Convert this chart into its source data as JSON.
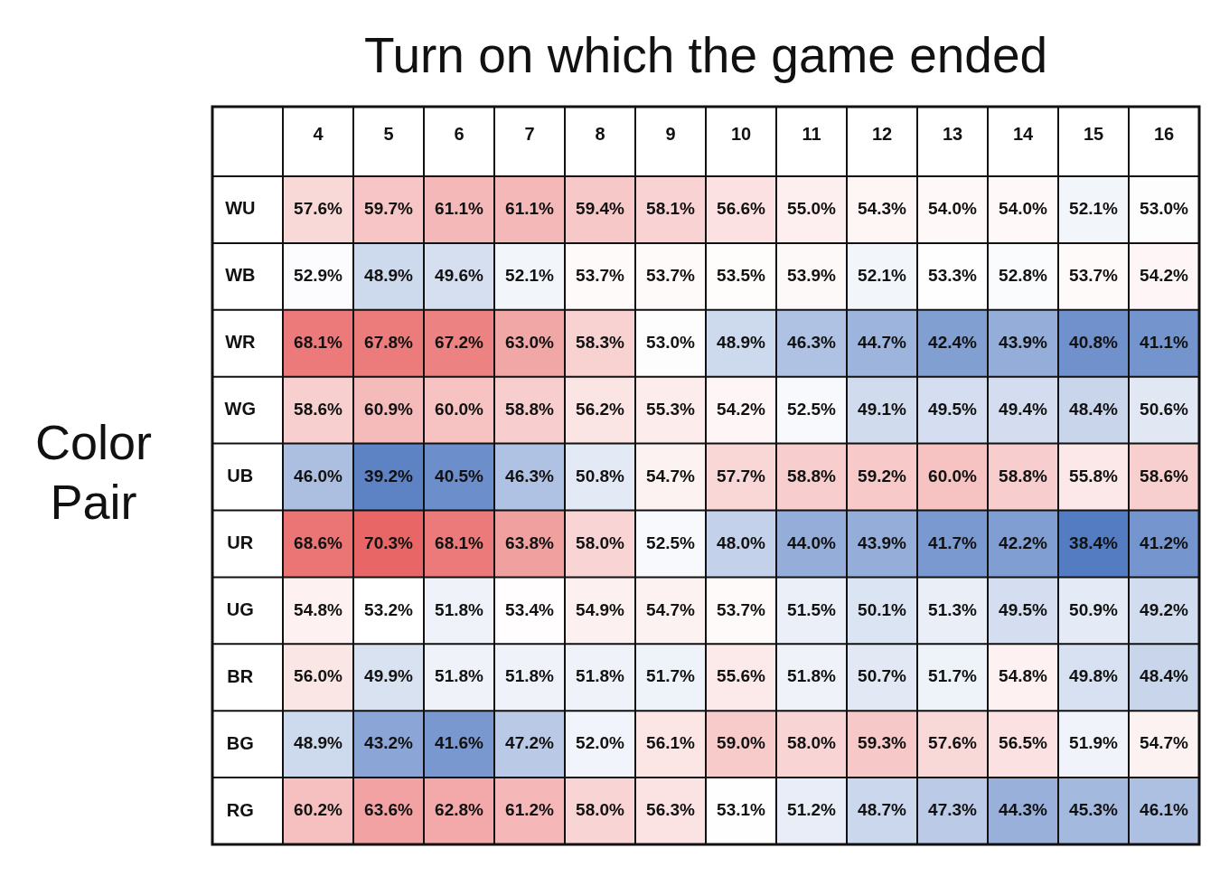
{
  "chart_data": {
    "type": "heatmap",
    "xlabel": "Turn on which the game ended",
    "ylabel": "Color Pair",
    "categories": [
      "4",
      "5",
      "6",
      "7",
      "8",
      "9",
      "10",
      "11",
      "12",
      "13",
      "14",
      "15",
      "16"
    ],
    "y_categories": [
      "WU",
      "WB",
      "WR",
      "WG",
      "UB",
      "UR",
      "UG",
      "BR",
      "BG",
      "RG"
    ],
    "cells": [
      [
        57.6,
        59.7,
        61.1,
        61.1,
        59.4,
        58.1,
        56.6,
        55.0,
        54.3,
        54.0,
        54.0,
        52.1,
        53.0
      ],
      [
        52.9,
        48.9,
        49.6,
        52.1,
        53.7,
        53.7,
        53.5,
        53.9,
        52.1,
        53.3,
        52.8,
        53.7,
        54.2
      ],
      [
        68.1,
        67.8,
        67.2,
        63.0,
        58.3,
        53.0,
        48.9,
        46.3,
        44.7,
        42.4,
        43.9,
        40.8,
        41.1
      ],
      [
        58.6,
        60.9,
        60.0,
        58.8,
        56.2,
        55.3,
        54.2,
        52.5,
        49.1,
        49.5,
        49.4,
        48.4,
        50.6
      ],
      [
        46.0,
        39.2,
        40.5,
        46.3,
        50.8,
        54.7,
        57.7,
        58.8,
        59.2,
        60.0,
        58.8,
        55.8,
        58.6
      ],
      [
        68.6,
        70.3,
        68.1,
        63.8,
        58.0,
        52.5,
        48.0,
        44.0,
        43.9,
        41.7,
        42.2,
        38.4,
        41.2
      ],
      [
        54.8,
        53.2,
        51.8,
        53.4,
        54.9,
        54.7,
        53.7,
        51.5,
        50.1,
        51.3,
        49.5,
        50.9,
        49.2
      ],
      [
        56.0,
        49.9,
        51.8,
        51.8,
        51.8,
        51.7,
        55.6,
        51.8,
        50.7,
        51.7,
        54.8,
        49.8,
        48.4
      ],
      [
        48.9,
        43.2,
        41.6,
        47.2,
        52.0,
        56.1,
        59.0,
        58.0,
        59.3,
        57.6,
        56.5,
        51.9,
        54.7
      ],
      [
        60.2,
        63.6,
        62.8,
        61.2,
        58.0,
        56.3,
        53.1,
        51.2,
        48.7,
        47.3,
        44.3,
        45.3,
        46.1
      ]
    ],
    "cell_labels": [
      [
        "57.6%",
        "59.7%",
        "61.1%",
        "61.1%",
        "59.4%",
        "58.1%",
        "56.6%",
        "55.0%",
        "54.3%",
        "54.0%",
        "54.0%",
        "52.1%",
        "53.0%"
      ],
      [
        "52.9%",
        "48.9%",
        "49.6%",
        "52.1%",
        "53.7%",
        "53.7%",
        "53.5%",
        "53.9%",
        "52.1%",
        "53.3%",
        "52.8%",
        "53.7%",
        "54.2%"
      ],
      [
        "68.1%",
        "67.8%",
        "67.2%",
        "63.0%",
        "58.3%",
        "53.0%",
        "48.9%",
        "46.3%",
        "44.7%",
        "42.4%",
        "43.9%",
        "40.8%",
        "41.1%"
      ],
      [
        "58.6%",
        "60.9%",
        "60.0%",
        "58.8%",
        "56.2%",
        "55.3%",
        "54.2%",
        "52.5%",
        "49.1%",
        "49.5%",
        "49.4%",
        "48.4%",
        "50.6%"
      ],
      [
        "46.0%",
        "39.2%",
        "40.5%",
        "46.3%",
        "50.8%",
        "54.7%",
        "57.7%",
        "58.8%",
        "59.2%",
        "60.0%",
        "58.8%",
        "55.8%",
        "58.6%"
      ],
      [
        "68.6%",
        "70.3%",
        "68.1%",
        "63.8%",
        "58.0%",
        "52.5%",
        "48.0%",
        "44.0%",
        "43.9%",
        "41.7%",
        "42.2%",
        "38.4%",
        "41.2%"
      ],
      [
        "54.8%",
        "53.2%",
        "51.8%",
        "53.4%",
        "54.9%",
        "54.7%",
        "53.7%",
        "51.5%",
        "50.1%",
        "51.3%",
        "49.5%",
        "50.9%",
        "49.2%"
      ],
      [
        "56.0%",
        "49.9%",
        "51.8%",
        "51.8%",
        "51.8%",
        "51.7%",
        "55.6%",
        "51.8%",
        "50.7%",
        "51.7%",
        "54.8%",
        "49.8%",
        "48.4%"
      ],
      [
        "48.9%",
        "43.2%",
        "41.6%",
        "47.2%",
        "52.0%",
        "56.1%",
        "59.0%",
        "58.0%",
        "59.3%",
        "57.6%",
        "56.5%",
        "51.9%",
        "54.7%"
      ],
      [
        "60.2%",
        "63.6%",
        "62.8%",
        "61.2%",
        "58.0%",
        "56.3%",
        "53.1%",
        "51.2%",
        "48.7%",
        "47.3%",
        "44.3%",
        "45.3%",
        "46.1%"
      ]
    ],
    "grid": true
  }
}
